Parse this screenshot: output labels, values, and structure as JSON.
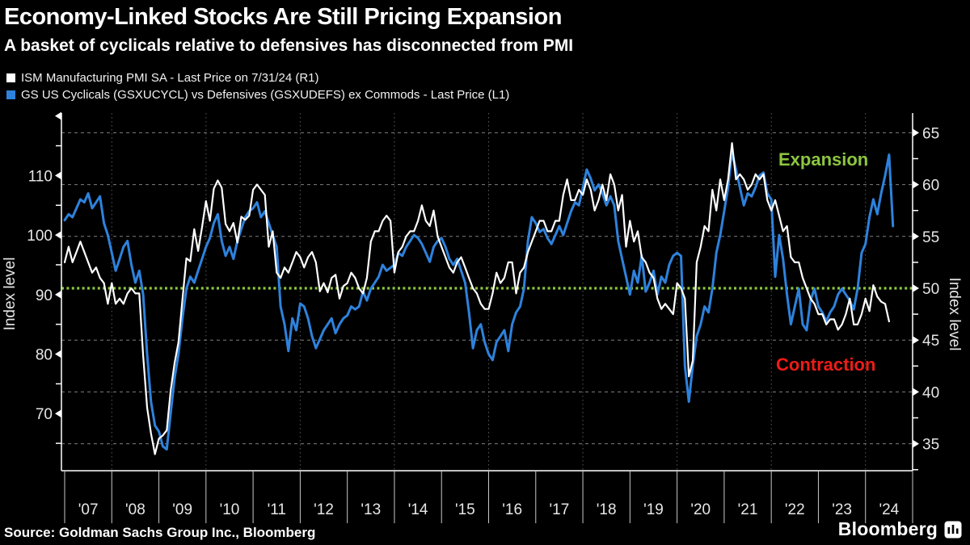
{
  "title": "Economy-Linked Stocks Are Still Pricing Expansion",
  "subtitle": "A basket of cyclicals relative to defensives has disconnected from PMI",
  "source": "Source: Goldman Sachs Group Inc., Bloomberg",
  "brand": "Bloomberg",
  "colors": {
    "background": "#000000",
    "pmi_series": "#ffffff",
    "cyclicals_series": "#2e82dc",
    "green": "#8cc63f",
    "red": "#ed1c16",
    "grid": "#ffffff",
    "axis": "#ffffff",
    "tick_label": "#e6e6e6"
  },
  "legend": [
    {
      "label": "ISM Manufacturing PMI SA - Last Price on 7/31/24 (R1)",
      "color": "#ffffff"
    },
    {
      "label": "GS US Cyclicals (GSXUCYCL) vs Defensives (GSXUDEFS) ex Commods - Last Price (L1)",
      "color": "#2e82dc"
    }
  ],
  "annotations": {
    "expansion": {
      "text": "Expansion",
      "color": "#8cc63f"
    },
    "contraction": {
      "text": "Contraction",
      "color": "#ed1c16"
    }
  },
  "chart_data": {
    "type": "line",
    "title": "Economy-Linked Stocks Are Still Pricing Expansion",
    "x_axis": {
      "range": [
        2007,
        2025
      ],
      "tick_labels": [
        "'07",
        "'08",
        "'09",
        "'10",
        "'11",
        "'12",
        "'13",
        "'14",
        "'15",
        "'16",
        "'17",
        "'18",
        "'19",
        "'20",
        "'21",
        "'22",
        "'23",
        "'24"
      ],
      "gridline_years": [
        2008,
        2010,
        2012,
        2014,
        2016,
        2018,
        2020,
        2022,
        2024
      ]
    },
    "left_axis": {
      "label": "Index level",
      "range": [
        60.4,
        120.5
      ],
      "major_ticks": [
        70,
        80,
        90,
        100,
        110
      ],
      "unlabeled_major_ticks": [
        120
      ],
      "minor_ticks": [
        65,
        75,
        85,
        95,
        105,
        115
      ]
    },
    "right_axis": {
      "label": "Index level",
      "range": [
        32.4,
        66.9
      ],
      "major_ticks": [
        35,
        40,
        45,
        50,
        55,
        60,
        65
      ],
      "minor_ticks": [
        32.5,
        37.5,
        42.5,
        47.5,
        52.5,
        57.5,
        62.5
      ],
      "gridlines_at": [
        35,
        40,
        45,
        55,
        60,
        65
      ]
    },
    "reference_line": {
      "value": 50,
      "axis": "right",
      "color": "#8cc63f",
      "style": "dotted",
      "meaning": "Expansion/Contraction threshold"
    },
    "series": [
      {
        "name": "GS US Cyclicals (GSXUCYCL) vs Defensives (GSXUDEFS) ex Commods - Last Price (L1)",
        "axis": "left",
        "color": "#2e82dc",
        "start": "2007-01",
        "frequency": "monthly",
        "values": [
          102.5,
          103.5,
          103,
          104.5,
          106,
          105.5,
          107,
          104.5,
          105.5,
          106.5,
          102,
          100,
          97,
          94,
          96,
          98,
          99,
          95,
          92,
          94,
          90,
          80,
          72,
          68,
          67,
          64.5,
          64,
          70,
          76,
          80,
          86,
          91,
          93,
          92,
          94,
          96,
          98,
          99.5,
          102,
          103.5,
          99,
          96.5,
          98,
          96,
          99,
          101,
          103,
          104,
          104.5,
          105.5,
          103,
          104,
          102,
          100,
          98,
          88,
          85,
          80.5,
          86,
          84,
          88.5,
          88,
          86,
          83,
          81,
          82.5,
          84,
          85,
          86,
          83.5,
          85,
          86,
          86.5,
          88,
          87.5,
          88,
          90.5,
          89,
          91,
          92,
          93,
          95,
          94,
          94.5,
          95,
          97,
          96.5,
          98,
          99,
          100,
          99.5,
          98.5,
          97,
          95.5,
          98,
          99,
          99.5,
          98,
          96,
          95,
          96,
          94,
          92,
          87,
          81,
          84,
          85,
          82,
          80,
          79,
          82,
          83,
          84,
          80.5,
          85,
          87,
          88,
          91,
          99,
          103,
          102,
          100.5,
          101,
          99.5,
          98.5,
          100,
          101.5,
          100,
          102,
          104,
          105.5,
          105,
          108,
          111,
          109.5,
          107.5,
          108.5,
          107,
          105,
          106.5,
          105,
          99,
          96,
          93,
          90,
          94,
          92,
          96.5,
          90.5,
          92,
          94,
          90,
          93,
          92,
          95,
          96.5,
          97,
          96.5,
          78,
          72,
          78,
          83,
          85,
          88,
          87,
          91,
          97,
          100,
          104,
          108,
          114,
          111,
          108,
          105,
          107,
          106.5,
          108,
          110,
          110.5,
          107,
          106,
          93,
          100,
          96,
          90,
          85,
          88,
          91,
          85,
          84,
          89,
          91,
          88,
          87,
          85.5,
          87,
          88,
          90,
          91,
          90,
          89,
          87.5,
          91,
          97,
          98.5,
          103,
          106,
          103.5,
          107,
          110,
          113.5,
          101.5
        ]
      },
      {
        "name": "ISM Manufacturing PMI SA - Last Price on 7/31/24 (R1)",
        "axis": "right",
        "color": "#ffffff",
        "start": "2007-01",
        "frequency": "monthly",
        "last_value": 46.8,
        "values": [
          52.5,
          54,
          52.5,
          53.5,
          54.5,
          53.5,
          52.5,
          51.5,
          52,
          51,
          50.5,
          48.5,
          50.5,
          48.5,
          49,
          48.5,
          49.5,
          50,
          49.5,
          49.5,
          43.5,
          38.5,
          36,
          34,
          35.5,
          35.8,
          36.3,
          40.1,
          42.8,
          44.8,
          48.9,
          52.9,
          52.6,
          55.7,
          53.6,
          55.9,
          58.4,
          56.5,
          59.6,
          60.4,
          59.7,
          56.2,
          55.5,
          56.3,
          54.4,
          56.9,
          56.6,
          57,
          59.5,
          60,
          59.5,
          59,
          54,
          55.5,
          51.5,
          51,
          52,
          51.5,
          52.5,
          53.5,
          53,
          52,
          53,
          53.5,
          52.5,
          49.7,
          50.5,
          49.6,
          51,
          51.3,
          49,
          50.2,
          50.5,
          51.5,
          51,
          50,
          49.5,
          51,
          54.5,
          55.5,
          55.5,
          56.5,
          57,
          56.5,
          51.5,
          53.5,
          54,
          55,
          55.5,
          55.5,
          56.5,
          58,
          56.5,
          56,
          57.5,
          55,
          54,
          53,
          52,
          51.5,
          52.5,
          53,
          52,
          51,
          50,
          49.5,
          48.5,
          48,
          48,
          49.5,
          51.5,
          50.5,
          51,
          52.5,
          52.5,
          49.5,
          51.5,
          52,
          53.5,
          54.5,
          55.5,
          56.5,
          56.5,
          55.5,
          55.5,
          56.5,
          56.5,
          59,
          60.5,
          58.5,
          58.5,
          59.5,
          59,
          60.5,
          59.5,
          57.5,
          58.5,
          60,
          58.5,
          61,
          60,
          57.5,
          59,
          54,
          56.5,
          54.5,
          55.5,
          53,
          52.5,
          51.5,
          51,
          49,
          48,
          48.5,
          48,
          47.5,
          50.5,
          50,
          49,
          41.5,
          43,
          52.5,
          54,
          56,
          55.5,
          59.5,
          57.5,
          60.5,
          58.5,
          60.5,
          64,
          60.5,
          61,
          60.5,
          59.5,
          60,
          61,
          60.5,
          61,
          58.5,
          57.5,
          58.5,
          57,
          55.5,
          56,
          53,
          52.5,
          52.5,
          51,
          50,
          49,
          48.5,
          47.5,
          47.5,
          46.5,
          47,
          47,
          46,
          46.5,
          47.5,
          49,
          46.5,
          46.5,
          47.5,
          49,
          47.8,
          50.3,
          49.2,
          48.7,
          48.5,
          46.8
        ]
      }
    ],
    "legend_position": "top-left",
    "grid": {
      "horizontal": "dashed at right-axis major ticks",
      "vertical": "dotted every 2 years"
    }
  }
}
